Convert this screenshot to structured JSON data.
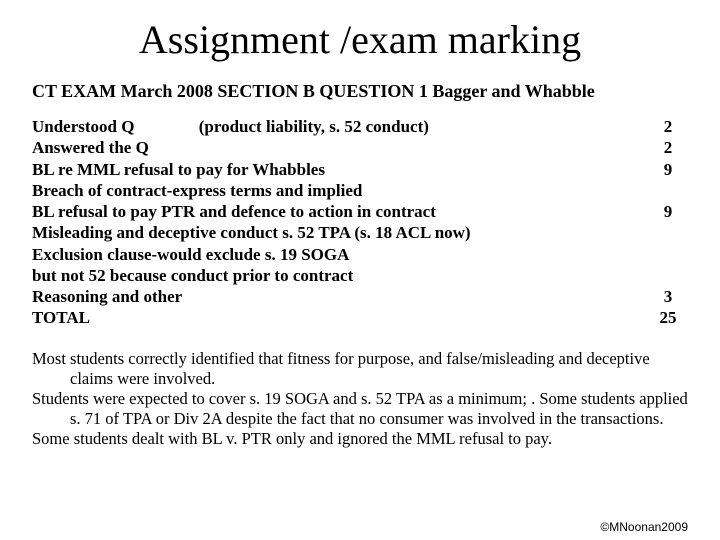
{
  "title": "Assignment /exam marking",
  "heading": "CT EXAM March 2008 SECTION B   QUESTION 1   Bagger and Whabble",
  "rubric": [
    {
      "label": "Understood Q",
      "hint": "(product liability, s. 52 conduct)",
      "score": "2"
    },
    {
      "label": "Answered the Q",
      "score": "2"
    },
    {
      "label": "BL re MML refusal to pay for Whabbles",
      "score": "9"
    },
    {
      "label": "Breach of contract-express terms and implied",
      "score": ""
    },
    {
      "label": "BL refusal to pay PTR and defence to action in contract",
      "score": "9"
    },
    {
      "label": "Misleading and deceptive conduct s. 52 TPA (s. 18 ACL now)",
      "score": ""
    },
    {
      "label": "Exclusion clause-would exclude s. 19 SOGA",
      "score": ""
    },
    {
      "label": "but not 52 because conduct prior to contract",
      "score": ""
    },
    {
      "label": "Reasoning   and other",
      "score": "3"
    },
    {
      "label": "TOTAL",
      "score": "25"
    }
  ],
  "commentary": [
    "Most students correctly identified that fitness for purpose, and false/misleading and deceptive claims were involved.",
    "Students were expected to cover s. 19 SOGA and s. 52 TPA as a minimum; . Some students applied s. 71 of TPA or Div 2A despite the fact that no consumer was involved in the transactions.",
    "Some students dealt with BL v. PTR only and ignored the MML refusal to pay."
  ],
  "footer": "©MNoonan2009"
}
